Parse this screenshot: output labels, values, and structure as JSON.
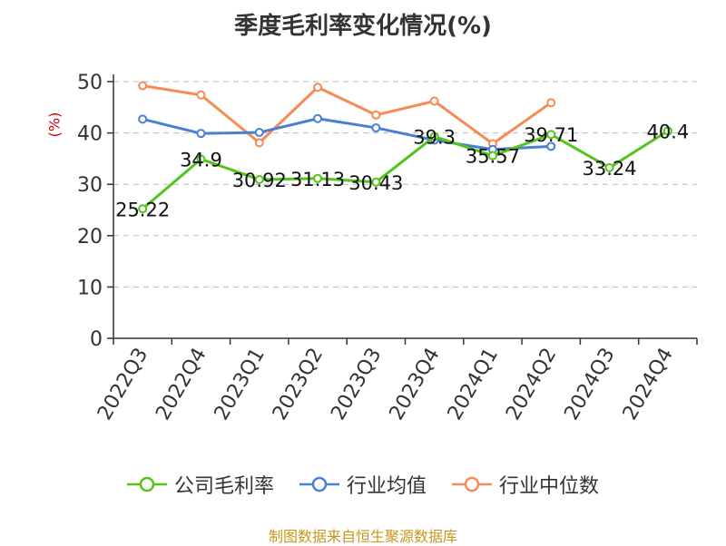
{
  "colors": {
    "green": "#52c41a",
    "blue": "#4a7fd4",
    "orange": "#f68b55",
    "ylabel": "#cc0000",
    "source": "#c8961e",
    "grid": "#bbbbbb",
    "axis": "#333333"
  },
  "chart_data": {
    "type": "line",
    "title": "季度毛利率变化情况(%)",
    "ylabel": "(%)",
    "ylim": [
      0,
      50
    ],
    "yticks": [
      0,
      10,
      20,
      30,
      40,
      50
    ],
    "grid": true,
    "legend_position": "bottom",
    "categories": [
      "2022Q3",
      "2022Q4",
      "2023Q1",
      "2023Q2",
      "2023Q3",
      "2023Q4",
      "2024Q1",
      "2024Q2",
      "2024Q3",
      "2024Q4"
    ],
    "series": [
      {
        "name": "公司毛利率",
        "color": "#52c41a",
        "labeled": true,
        "values": [
          25.22,
          34.9,
          30.92,
          31.13,
          30.43,
          39.3,
          35.57,
          39.71,
          33.24,
          40.4
        ]
      },
      {
        "name": "行业均值",
        "color": "#4a7fd4",
        "labeled": false,
        "values": [
          42.7,
          39.9,
          40.1,
          42.8,
          41.0,
          38.6,
          36.8,
          37.4,
          null,
          null
        ]
      },
      {
        "name": "行业中位数",
        "color": "#f68b55",
        "labeled": false,
        "values": [
          49.2,
          47.4,
          38.1,
          48.9,
          43.5,
          46.2,
          37.9,
          45.9,
          null,
          null
        ]
      }
    ]
  },
  "source": "制图数据来自恒生聚源数据库"
}
